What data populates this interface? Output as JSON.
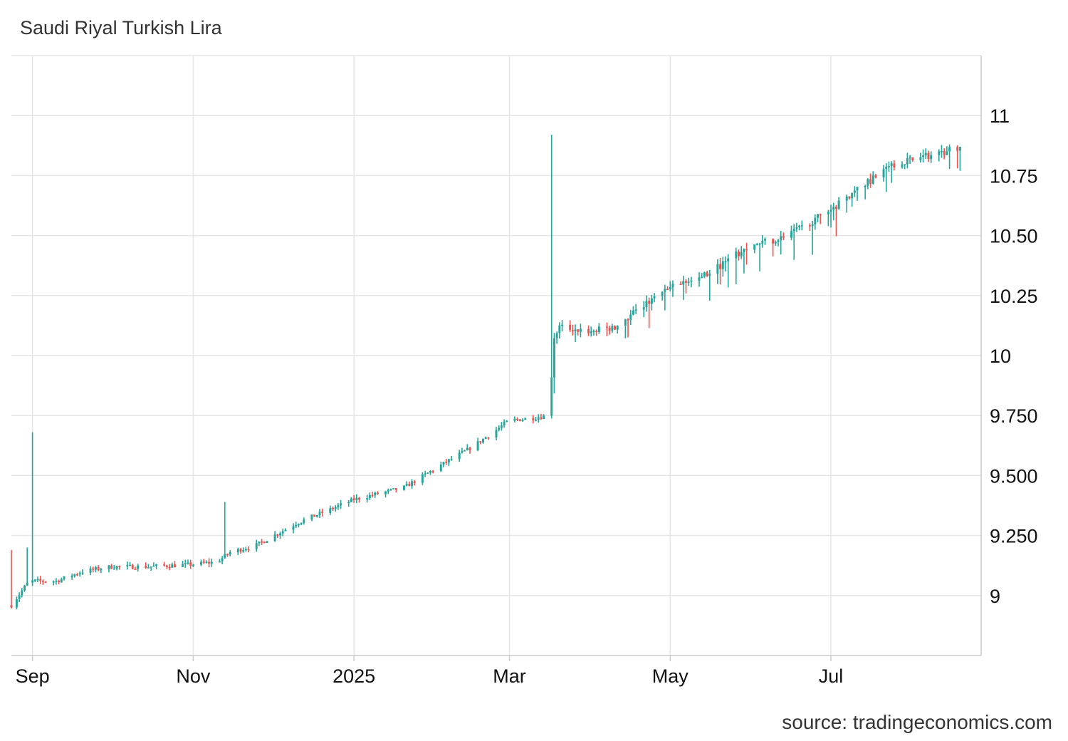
{
  "title": "Saudi Riyal Turkish Lira",
  "source": "source: tradingeconomics.com",
  "colors": {
    "up": "#26a69a",
    "down": "#ef5350",
    "grid": "#e6e6e6",
    "axis": "#dddddd"
  },
  "chart_data": {
    "type": "candlestick",
    "title": "Saudi Riyal Turkish Lira",
    "xlabel": "",
    "ylabel": "",
    "x_range": [
      "2024-08-24",
      "2025-08-27"
    ],
    "ylim": [
      8.75,
      11.25
    ],
    "y_ticks": [
      {
        "value": 9,
        "label": "9"
      },
      {
        "value": 9.25,
        "label": "9.250"
      },
      {
        "value": 9.5,
        "label": "9.500"
      },
      {
        "value": 9.75,
        "label": "9.750"
      },
      {
        "value": 10,
        "label": "10"
      },
      {
        "value": 10.25,
        "label": "10.25"
      },
      {
        "value": 10.5,
        "label": "10.50"
      },
      {
        "value": 10.75,
        "label": "10.75"
      },
      {
        "value": 11,
        "label": "11"
      }
    ],
    "x_ticks": [
      {
        "date": "2024-09-01",
        "label": "Sep"
      },
      {
        "date": "2024-11-01",
        "label": "Nov"
      },
      {
        "date": "2025-01-01",
        "label": "2025"
      },
      {
        "date": "2025-03-01",
        "label": "Mar"
      },
      {
        "date": "2025-05-01",
        "label": "May"
      },
      {
        "date": "2025-07-01",
        "label": "Jul"
      }
    ],
    "grid": true,
    "close_anchors": [
      [
        "2024-08-24",
        8.96
      ],
      [
        "2024-08-30",
        9.05
      ],
      [
        "2024-09-01",
        9.06
      ],
      [
        "2024-09-10",
        9.06
      ],
      [
        "2024-09-15",
        9.08
      ],
      [
        "2024-09-20",
        9.1
      ],
      [
        "2024-10-01",
        9.12
      ],
      [
        "2024-10-15",
        9.12
      ],
      [
        "2024-11-01",
        9.13
      ],
      [
        "2024-11-10",
        9.14
      ],
      [
        "2024-11-15",
        9.18
      ],
      [
        "2024-11-25",
        9.21
      ],
      [
        "2024-12-10",
        9.3
      ],
      [
        "2025-01-01",
        9.4
      ],
      [
        "2025-01-20",
        9.45
      ],
      [
        "2025-02-01",
        9.53
      ],
      [
        "2025-02-15",
        9.62
      ],
      [
        "2025-03-01",
        9.73
      ],
      [
        "2025-03-10",
        9.74
      ],
      [
        "2025-03-16",
        9.75
      ],
      [
        "2025-03-18",
        10.08
      ],
      [
        "2025-03-20",
        10.12
      ],
      [
        "2025-04-01",
        10.1
      ],
      [
        "2025-04-10",
        10.12
      ],
      [
        "2025-04-25",
        10.24
      ],
      [
        "2025-05-01",
        10.28
      ],
      [
        "2025-05-15",
        10.34
      ],
      [
        "2025-06-01",
        10.46
      ],
      [
        "2025-06-15",
        10.5
      ],
      [
        "2025-07-01",
        10.61
      ],
      [
        "2025-07-15",
        10.72
      ],
      [
        "2025-07-25",
        10.8
      ],
      [
        "2025-08-10",
        10.84
      ],
      [
        "2025-08-19",
        10.87
      ]
    ],
    "spikes": [
      {
        "date": "2024-08-24",
        "high": 9.19
      },
      {
        "date": "2024-08-30",
        "high": 9.2
      },
      {
        "date": "2024-09-01",
        "high": 9.68
      },
      {
        "date": "2024-11-13",
        "high": 9.39
      },
      {
        "date": "2025-03-17",
        "high": 10.92
      }
    ],
    "last": {
      "date": "2025-08-19",
      "close": 10.87
    }
  }
}
